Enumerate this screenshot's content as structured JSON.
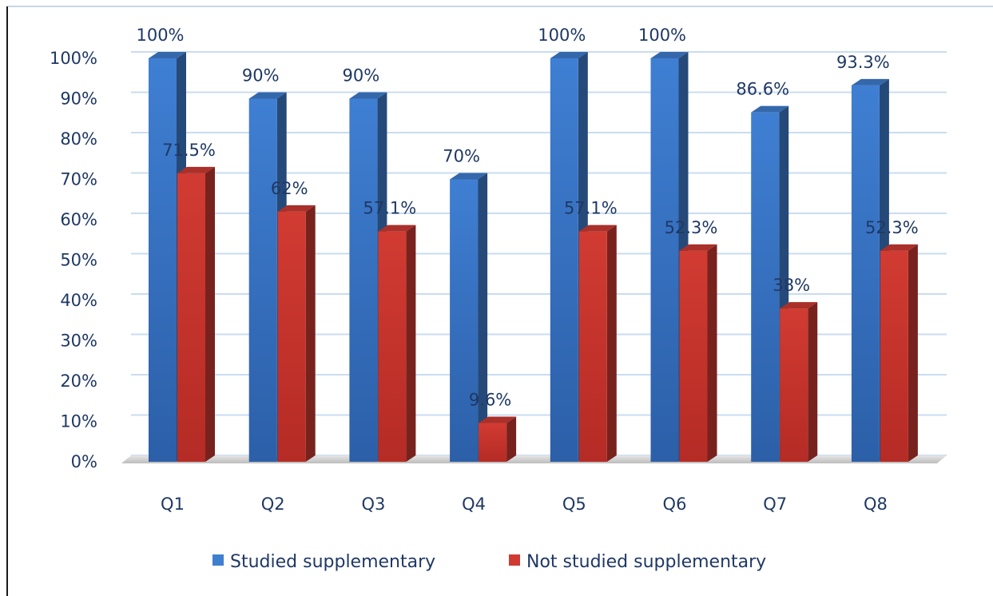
{
  "chart_data": {
    "type": "bar",
    "categories": [
      "Q1",
      "Q2",
      "Q3",
      "Q4",
      "Q5",
      "Q6",
      "Q7",
      "Q8"
    ],
    "series": [
      {
        "name": "Studied supplementary",
        "values": [
          100,
          90,
          90,
          70,
          100,
          100,
          86.6,
          93.3
        ],
        "labels": [
          "100%",
          "90%",
          "90%",
          "70%",
          "100%",
          "100%",
          "86.6%",
          "93.3%"
        ],
        "color": "#3f7fd0"
      },
      {
        "name": "Not studied supplementary",
        "values": [
          71.5,
          62,
          57.1,
          9.6,
          57.1,
          52.3,
          38,
          52.3
        ],
        "labels": [
          "71.5%",
          "62%",
          "57.1%",
          "9.6%",
          "57.1%",
          "52.3%",
          "38%",
          "52.3%"
        ],
        "color": "#cf3b33"
      }
    ],
    "ylim": [
      0,
      100
    ],
    "yticks": [
      "0%",
      "10%",
      "20%",
      "30%",
      "40%",
      "50%",
      "60%",
      "70%",
      "80%",
      "90%",
      "100%"
    ],
    "grid": true,
    "legend_position": "bottom",
    "style": "3d-column"
  }
}
